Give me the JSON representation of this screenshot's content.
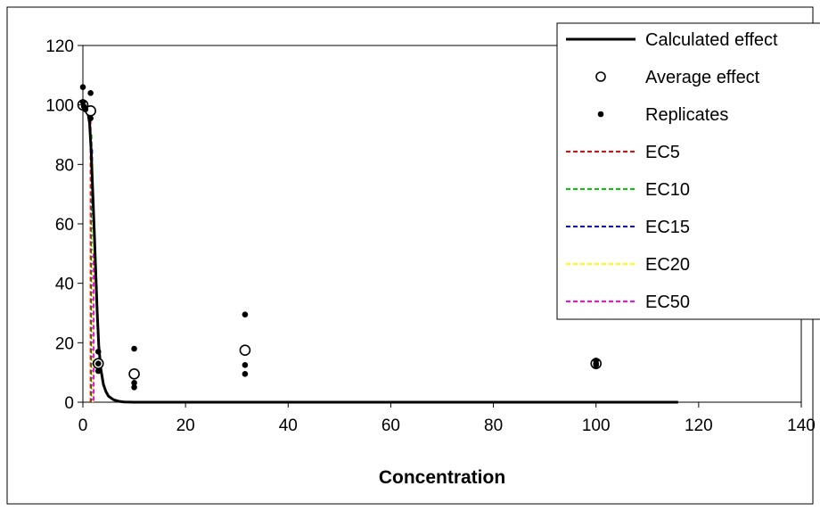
{
  "chart_data": {
    "type": "scatter",
    "title": "",
    "xlabel": "Concentration",
    "ylabel": "",
    "xlim": [
      0,
      140
    ],
    "ylim": [
      0,
      120
    ],
    "x_ticks": [
      "0",
      "20",
      "40",
      "60",
      "80",
      "100",
      "120",
      "140"
    ],
    "y_ticks": [
      "0",
      "20",
      "40",
      "60",
      "80",
      "100",
      "120"
    ],
    "grid": false,
    "legend_position": "top-right",
    "legend": [
      {
        "label": "Calculated effect",
        "marker": "line",
        "color": "#000000"
      },
      {
        "label": "Average effect",
        "marker": "open-circle",
        "color": "#000000"
      },
      {
        "label": "Replicates",
        "marker": "dot",
        "color": "#000000"
      },
      {
        "label": "EC5",
        "marker": "dashed-line",
        "color": "#ff0000"
      },
      {
        "label": "EC10",
        "marker": "dashed-line",
        "color": "#00cc00"
      },
      {
        "label": "EC15",
        "marker": "dashed-line",
        "color": "#0000ff"
      },
      {
        "label": "EC20",
        "marker": "dashed-line",
        "color": "#ffff00"
      },
      {
        "label": "EC50",
        "marker": "dashed-line",
        "color": "#ff00ff"
      }
    ],
    "series": [
      {
        "name": "Calculated effect",
        "kind": "line",
        "color": "#000000",
        "points": [
          [
            0,
            100
          ],
          [
            0.5,
            99.5
          ],
          [
            1,
            97
          ],
          [
            1.3,
            94
          ],
          [
            1.6,
            85
          ],
          [
            1.9,
            72
          ],
          [
            2.2,
            58
          ],
          [
            2.5,
            44
          ],
          [
            2.8,
            30
          ],
          [
            3.1,
            19
          ],
          [
            3.5,
            11
          ],
          [
            4,
            6
          ],
          [
            4.5,
            3.5
          ],
          [
            5,
            2
          ],
          [
            6,
            0.8
          ],
          [
            7,
            0.3
          ],
          [
            8,
            0.1
          ],
          [
            10,
            0
          ],
          [
            20,
            0
          ],
          [
            60,
            0
          ],
          [
            100,
            0
          ],
          [
            116,
            0
          ]
        ]
      },
      {
        "name": "Average effect",
        "kind": "open-circle",
        "color": "#000000",
        "points": [
          [
            0,
            100
          ],
          [
            1.5,
            98
          ],
          [
            3,
            13
          ],
          [
            10,
            9.5
          ],
          [
            31.6,
            17.5
          ],
          [
            100,
            13
          ]
        ]
      },
      {
        "name": "Replicates",
        "kind": "dot",
        "color": "#000000",
        "points": [
          [
            0,
            106
          ],
          [
            0,
            101
          ],
          [
            0.2,
            99.5
          ],
          [
            0.5,
            98.5
          ],
          [
            1.5,
            104
          ],
          [
            1.5,
            95.5
          ],
          [
            3,
            17
          ],
          [
            3,
            13
          ],
          [
            3,
            10.5
          ],
          [
            10,
            18
          ],
          [
            10,
            6.5
          ],
          [
            10,
            5
          ],
          [
            31.6,
            29.5
          ],
          [
            31.6,
            12.5
          ],
          [
            31.6,
            9.5
          ],
          [
            100,
            14
          ],
          [
            100,
            13
          ],
          [
            100,
            12.5
          ]
        ]
      },
      {
        "name": "EC5",
        "kind": "ec-line",
        "color": "#ff0000",
        "x": 1.5,
        "y_top": 95
      },
      {
        "name": "EC10",
        "kind": "ec-line",
        "color": "#00cc00",
        "x": 1.7,
        "y_top": 90
      },
      {
        "name": "EC15",
        "kind": "ec-line",
        "color": "#0000ff",
        "x": 1.8,
        "y_top": 85
      },
      {
        "name": "EC20",
        "kind": "ec-line",
        "color": "#ffff00",
        "x": 1.9,
        "y_top": 80
      },
      {
        "name": "EC50",
        "kind": "ec-line",
        "color": "#ff00ff",
        "x": 2.1,
        "y_top": 50
      }
    ]
  }
}
